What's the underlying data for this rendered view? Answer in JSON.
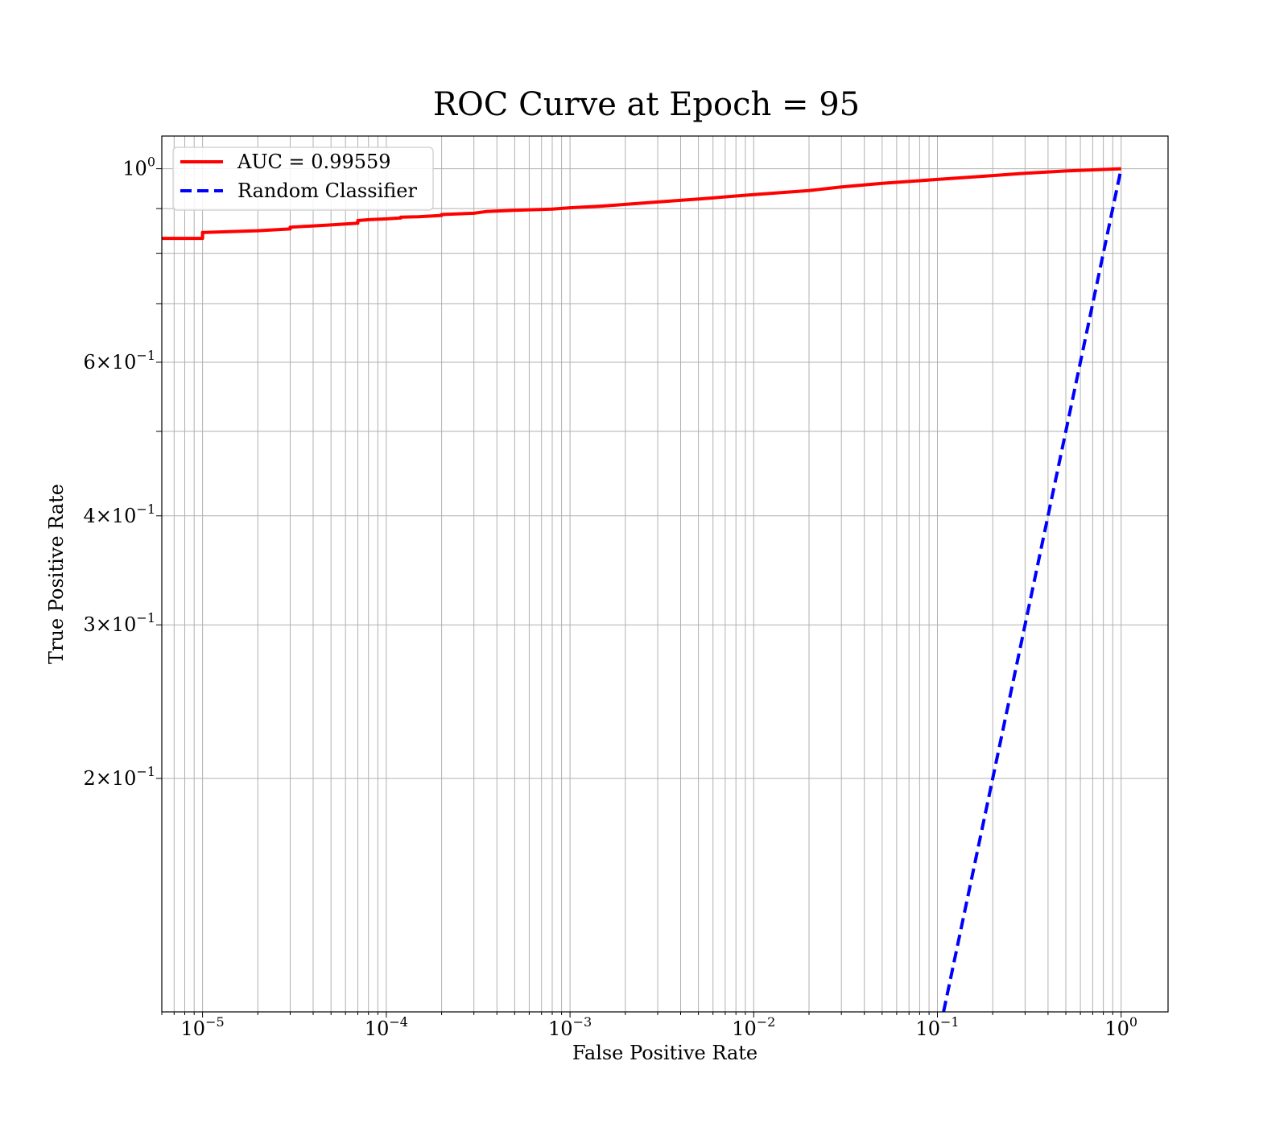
{
  "chart_data": {
    "type": "line",
    "title": "ROC Curve at Epoch = 95",
    "xlabel": "False Positive Rate",
    "ylabel": "True Positive Rate",
    "xscale": "log",
    "yscale": "log",
    "xlim": [
      6e-06,
      1.8
    ],
    "ylim": [
      0.108,
      1.09
    ],
    "grid": true,
    "grid_which": "both",
    "legend_position": "upper-left",
    "x_ticks": [
      {
        "value": 1e-05,
        "base": "10",
        "exp": "−5"
      },
      {
        "value": 0.0001,
        "base": "10",
        "exp": "−4"
      },
      {
        "value": 0.001,
        "base": "10",
        "exp": "−3"
      },
      {
        "value": 0.01,
        "base": "10",
        "exp": "−2"
      },
      {
        "value": 0.1,
        "base": "10",
        "exp": "−1"
      },
      {
        "value": 1,
        "base": "10",
        "exp": "0"
      }
    ],
    "y_ticks": [
      {
        "value": 1,
        "mant": "",
        "base": "10",
        "exp": "0"
      },
      {
        "value": 0.6,
        "mant": "6",
        "base": "10",
        "exp": "−1"
      },
      {
        "value": 0.4,
        "mant": "4",
        "base": "10",
        "exp": "−1"
      },
      {
        "value": 0.3,
        "mant": "3",
        "base": "10",
        "exp": "−1"
      },
      {
        "value": 0.2,
        "mant": "2",
        "base": "10",
        "exp": "−1"
      }
    ],
    "series": [
      {
        "name": "AUC = 0.99559",
        "color": "#ff0000",
        "style": "solid",
        "x": [
          6e-06,
          1e-05,
          1e-05,
          2e-05,
          3e-05,
          3e-05,
          5e-05,
          7e-05,
          7e-05,
          8e-05,
          0.0001,
          0.00012,
          0.00012,
          0.00015,
          0.0002,
          0.0002,
          0.0003,
          0.00035,
          0.0005,
          0.0008,
          0.001,
          0.0015,
          0.002,
          0.003,
          0.005,
          0.01,
          0.02,
          0.03,
          0.05,
          0.1,
          0.2,
          0.3,
          0.5,
          1.0
        ],
        "y": [
          0.832,
          0.832,
          0.845,
          0.849,
          0.853,
          0.857,
          0.862,
          0.866,
          0.872,
          0.874,
          0.876,
          0.878,
          0.88,
          0.881,
          0.884,
          0.886,
          0.889,
          0.893,
          0.896,
          0.899,
          0.902,
          0.906,
          0.91,
          0.916,
          0.923,
          0.934,
          0.944,
          0.953,
          0.962,
          0.972,
          0.982,
          0.988,
          0.994,
          1.0
        ]
      },
      {
        "name": "Random Classifier",
        "color": "#0000ff",
        "style": "dashed",
        "x": [
          0.108,
          1.0
        ],
        "y": [
          0.108,
          1.0
        ]
      }
    ]
  }
}
